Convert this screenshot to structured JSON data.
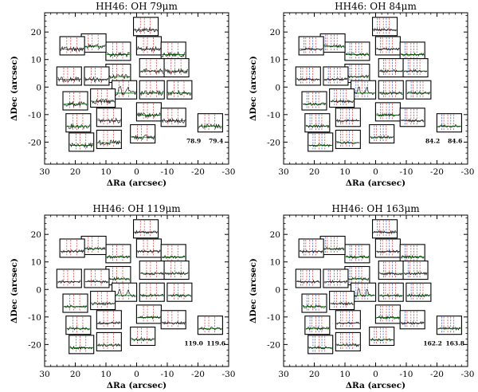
{
  "figure": {
    "panels": [
      {
        "title_prefix": "HH46:  OH ",
        "title_value": "79",
        "title_unit": "μm",
        "wl_left": "78.9",
        "wl_right": "79.4"
      },
      {
        "title_prefix": "HH46:  OH ",
        "title_value": "84",
        "title_unit": "μm",
        "wl_left": "84.2",
        "wl_right": "84.6"
      },
      {
        "title_prefix": "HH46:  OH ",
        "title_value": "119",
        "title_unit": "μm",
        "wl_left": "119.0",
        "wl_right": "119.6"
      },
      {
        "title_prefix": "HH46:  OH ",
        "title_value": "163",
        "title_unit": "μm",
        "wl_left": "162.2",
        "wl_right": "163.8"
      }
    ]
  },
  "colors": {
    "spectrum": "#1a1a1a",
    "continuum": "#228b22",
    "line_marker": "#e03030",
    "blue_marker": "#3050e0"
  },
  "chart_data": [
    {
      "type": "scatter",
      "title": "HH46:  OH 79μm",
      "xlabel": "ΔRa (arcsec)",
      "ylabel": "ΔDec (arcsec)",
      "xlim": [
        30,
        -30
      ],
      "ylim": [
        -28,
        27
      ],
      "xticks": [
        30,
        20,
        10,
        0,
        -10,
        -20,
        -30
      ],
      "yticks": [
        20,
        10,
        0,
        -10,
        -20
      ],
      "annotations": [
        "78.9",
        "79.4"
      ]
    },
    {
      "type": "scatter",
      "title": "HH46:  OH 84μm",
      "xlabel": "ΔRa (arcsec)",
      "ylabel": "ΔDec (arcsec)",
      "xlim": [
        30,
        -30
      ],
      "ylim": [
        -28,
        27
      ],
      "xticks": [
        30,
        20,
        10,
        0,
        -10,
        -20,
        -30
      ],
      "yticks": [
        20,
        10,
        0,
        -10,
        -20
      ],
      "annotations": [
        "84.2",
        "84.6"
      ]
    },
    {
      "type": "scatter",
      "title": "HH46:  OH 119μm",
      "xlabel": "ΔRa (arcsec)",
      "ylabel": "ΔDec (arcsec)",
      "xlim": [
        30,
        -30
      ],
      "ylim": [
        -28,
        27
      ],
      "xticks": [
        30,
        20,
        10,
        0,
        -10,
        -20,
        -30
      ],
      "yticks": [
        20,
        10,
        0,
        -10,
        -20
      ],
      "annotations": [
        "119.0",
        "119.6"
      ]
    },
    {
      "type": "scatter",
      "title": "HH46:  OH 163μm",
      "xlabel": "ΔRa (arcsec)",
      "ylabel": "ΔDec (arcsec)",
      "xlim": [
        30,
        -30
      ],
      "ylim": [
        -28,
        27
      ],
      "xticks": [
        30,
        20,
        10,
        0,
        -10,
        -20,
        -30
      ],
      "yticks": [
        20,
        10,
        0,
        -10,
        -20
      ],
      "annotations": [
        "162.2",
        "163.8"
      ]
    }
  ],
  "spaxels": {
    "description_units": "arcsec",
    "positions": [
      [
        -3,
        22
      ],
      [
        6,
        13
      ],
      [
        -4,
        15
      ],
      [
        -12,
        13
      ],
      [
        14,
        16
      ],
      [
        21,
        15
      ],
      [
        -5,
        7
      ],
      [
        -13,
        7
      ],
      [
        6,
        5
      ],
      [
        13,
        4
      ],
      [
        22,
        4
      ],
      [
        4,
        -1
      ],
      [
        -5,
        -1
      ],
      [
        -14,
        -1
      ],
      [
        11,
        -4
      ],
      [
        20,
        -5
      ],
      [
        -4,
        -9
      ],
      [
        -12,
        -11
      ],
      [
        9,
        -11
      ],
      [
        19,
        -13
      ],
      [
        -24,
        -13
      ],
      [
        -2,
        -17
      ],
      [
        9,
        -19
      ],
      [
        18,
        -20
      ]
    ],
    "central_index": 11
  }
}
